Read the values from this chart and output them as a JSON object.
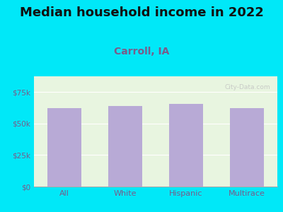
{
  "title": "Median household income in 2022",
  "subtitle": "Carroll, IA",
  "categories": [
    "All",
    "White",
    "Hispanic",
    "Multirace"
  ],
  "values": [
    62000,
    64000,
    65500,
    62500
  ],
  "bar_color": "#b8aad6",
  "title_fontsize": 13,
  "subtitle_fontsize": 10,
  "subtitle_color": "#7a5c8a",
  "title_color": "#111111",
  "tick_color": "#7a5c8a",
  "bg_outer": "#00e8f8",
  "bg_chart_top": "#e8f5e0",
  "bg_chart_bottom": "#f5fff5",
  "ylim": [
    0,
    87500
  ],
  "yticks": [
    0,
    25000,
    50000,
    75000
  ],
  "ytick_labels": [
    "$0",
    "$25k",
    "$50k",
    "$75k"
  ],
  "watermark": "City-Data.com",
  "grid_color": "#ffffff"
}
